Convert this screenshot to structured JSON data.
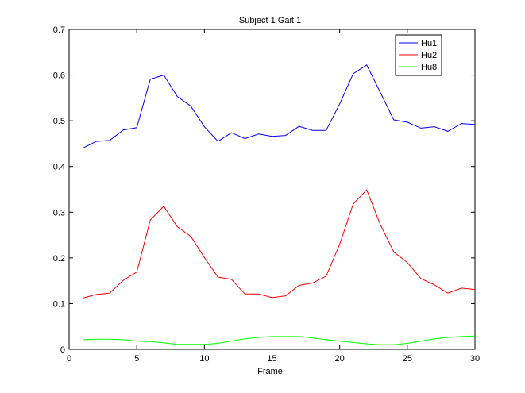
{
  "chart_data": {
    "type": "line",
    "title": "Subject 1 Gait 1",
    "xlabel": "Frame",
    "ylabel": "",
    "xlim": [
      0,
      30
    ],
    "ylim": [
      0,
      0.7
    ],
    "xticks": [
      0,
      5,
      10,
      15,
      20,
      25,
      30
    ],
    "yticks": [
      0,
      0.1,
      0.2,
      0.3,
      0.4,
      0.5,
      0.6,
      0.7
    ],
    "xtick_labels": [
      "0",
      "5",
      "10",
      "15",
      "20",
      "25",
      "30"
    ],
    "ytick_labels": [
      "0",
      "0.1",
      "0.2",
      "0.3",
      "0.4",
      "0.5",
      "0.6",
      "0.7"
    ],
    "grid": false,
    "legend": "top-right",
    "x": [
      1,
      2,
      3,
      4,
      5,
      6,
      7,
      8,
      9,
      10,
      11,
      12,
      13,
      14,
      15,
      16,
      17,
      18,
      19,
      20,
      21,
      22,
      23,
      24,
      25,
      26,
      27,
      28,
      29,
      30
    ],
    "series": [
      {
        "name": "Hu1",
        "color": "#0000ff",
        "values": [
          0.44,
          0.455,
          0.457,
          0.48,
          0.485,
          0.591,
          0.6,
          0.553,
          0.532,
          0.487,
          0.455,
          0.474,
          0.461,
          0.471,
          0.466,
          0.468,
          0.488,
          0.479,
          0.479,
          0.537,
          0.603,
          0.622,
          0.562,
          0.502,
          0.497,
          0.484,
          0.487,
          0.477,
          0.494,
          0.492
        ]
      },
      {
        "name": "Hu2",
        "color": "#ff0000",
        "values": [
          0.112,
          0.12,
          0.123,
          0.151,
          0.169,
          0.283,
          0.313,
          0.268,
          0.247,
          0.201,
          0.158,
          0.153,
          0.121,
          0.121,
          0.113,
          0.117,
          0.14,
          0.145,
          0.16,
          0.23,
          0.318,
          0.349,
          0.273,
          0.213,
          0.19,
          0.155,
          0.141,
          0.123,
          0.134,
          0.131
        ]
      },
      {
        "name": "Hu8",
        "color": "#00ff00",
        "values": [
          0.021,
          0.022,
          0.022,
          0.021,
          0.018,
          0.017,
          0.014,
          0.011,
          0.011,
          0.011,
          0.013,
          0.018,
          0.023,
          0.026,
          0.028,
          0.028,
          0.028,
          0.025,
          0.021,
          0.018,
          0.015,
          0.012,
          0.01,
          0.01,
          0.013,
          0.018,
          0.023,
          0.026,
          0.028,
          0.029
        ]
      }
    ]
  }
}
